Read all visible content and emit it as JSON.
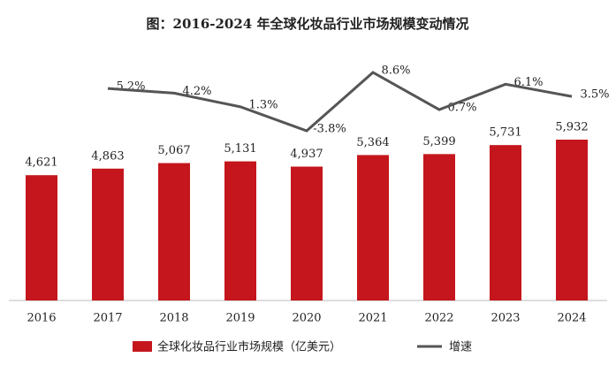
{
  "chart_data": {
    "type": "bar",
    "title": "图：2016-2024 年全球化妆品行业市场规模变动情况",
    "categories": [
      "2016",
      "2017",
      "2018",
      "2019",
      "2020",
      "2021",
      "2022",
      "2023",
      "2024"
    ],
    "series": [
      {
        "name": "全球化妆品行业市场规模（亿美元）",
        "type": "bar",
        "color": "#c4161c",
        "values": [
          4621,
          4863,
          5067,
          5131,
          4937,
          5364,
          5399,
          5731,
          5932
        ],
        "value_labels": [
          "4,621",
          "4,863",
          "5,067",
          "5,131",
          "4,937",
          "5,364",
          "5,399",
          "5,731",
          "5,932"
        ]
      },
      {
        "name": "增速",
        "type": "line",
        "axis": "y2",
        "color": "#555555",
        "values": [
          null,
          5.2,
          4.2,
          1.3,
          -3.8,
          8.6,
          0.7,
          6.1,
          3.5
        ],
        "value_labels": [
          null,
          "5.2%",
          "4.2%",
          "1.3%",
          "-3.8%",
          "8.6%",
          "0.7%",
          "6.1%",
          "3.5%"
        ]
      }
    ]
  }
}
